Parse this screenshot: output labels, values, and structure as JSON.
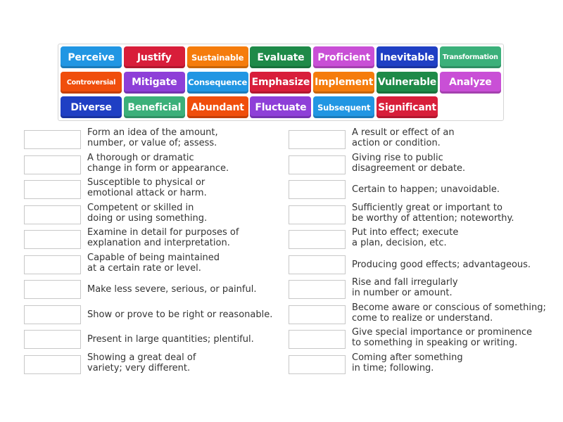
{
  "tiles": [
    {
      "label": "Perceive",
      "color": "#2196e3",
      "row": 0,
      "col": 0,
      "size": ""
    },
    {
      "label": "Justify",
      "color": "#d81e3a",
      "row": 0,
      "col": 1,
      "size": ""
    },
    {
      "label": "Sustainable",
      "color": "#f57c0c",
      "row": 0,
      "col": 2,
      "size": "sm"
    },
    {
      "label": "Evaluate",
      "color": "#1e8a48",
      "row": 0,
      "col": 3,
      "size": ""
    },
    {
      "label": "Proficient",
      "color": "#c94fd6",
      "row": 0,
      "col": 4,
      "size": ""
    },
    {
      "label": "Inevitable",
      "color": "#1f3fc4",
      "row": 0,
      "col": 5,
      "size": ""
    },
    {
      "label": "Transformation",
      "color": "#3bb07a",
      "row": 0,
      "col": 6,
      "size": "xs"
    },
    {
      "label": "Controversial",
      "color": "#f04e0c",
      "row": 1,
      "col": 0,
      "size": "xs"
    },
    {
      "label": "Mitigate",
      "color": "#8e3fd8",
      "row": 1,
      "col": 1,
      "size": ""
    },
    {
      "label": "Consequence",
      "color": "#2196e3",
      "row": 1,
      "col": 2,
      "size": "sm"
    },
    {
      "label": "Emphasize",
      "color": "#d81e3a",
      "row": 1,
      "col": 3,
      "size": ""
    },
    {
      "label": "Implement",
      "color": "#f57c0c",
      "row": 1,
      "col": 4,
      "size": ""
    },
    {
      "label": "Vulnerable",
      "color": "#1e8a48",
      "row": 1,
      "col": 5,
      "size": ""
    },
    {
      "label": "Analyze",
      "color": "#c94fd6",
      "row": 1,
      "col": 6,
      "size": ""
    },
    {
      "label": "Diverse",
      "color": "#1f3fc4",
      "row": 2,
      "col": 0,
      "size": ""
    },
    {
      "label": "Beneficial",
      "color": "#3bb07a",
      "row": 2,
      "col": 1,
      "size": ""
    },
    {
      "label": "Abundant",
      "color": "#f04e0c",
      "row": 2,
      "col": 2,
      "size": ""
    },
    {
      "label": "Fluctuate",
      "color": "#8e3fd8",
      "row": 2,
      "col": 3,
      "size": ""
    },
    {
      "label": "Subsequent",
      "color": "#2196e3",
      "row": 2,
      "col": 4,
      "size": "sm"
    },
    {
      "label": "Significant",
      "color": "#d81e3a",
      "row": 2,
      "col": 5,
      "size": ""
    }
  ],
  "definitions_left": [
    {
      "line1": "Form an idea of the amount,",
      "line2": "number, or value of; assess."
    },
    {
      "line1": "A thorough or dramatic",
      "line2": "change in form or appearance."
    },
    {
      "line1": "Susceptible to physical or",
      "line2": "emotional attack or harm."
    },
    {
      "line1": "Competent or skilled in",
      "line2": "doing or using something."
    },
    {
      "line1": "Examine in detail for purposes of",
      "line2": "explanation and interpretation."
    },
    {
      "line1": "Capable of being maintained",
      "line2": "at a certain rate or level."
    },
    {
      "line1": "Make less severe, serious, or painful.",
      "line2": ""
    },
    {
      "line1": "Show or prove to be right or reasonable.",
      "line2": ""
    },
    {
      "line1": "Present in large quantities; plentiful.",
      "line2": ""
    },
    {
      "line1": "Showing a great deal of",
      "line2": "variety; very different."
    }
  ],
  "definitions_right": [
    {
      "line1": "A result or effect of an",
      "line2": "action or condition."
    },
    {
      "line1": "Giving rise to public",
      "line2": "disagreement or debate."
    },
    {
      "line1": "Certain to happen; unavoidable.",
      "line2": ""
    },
    {
      "line1": "Sufficiently great or important to",
      "line2": "be worthy of attention; noteworthy."
    },
    {
      "line1": "Put into effect; execute",
      "line2": "a plan, decision, etc."
    },
    {
      "line1": "Producing good effects; advantageous.",
      "line2": ""
    },
    {
      "line1": "Rise and fall irregularly",
      "line2": "in number or amount."
    },
    {
      "line1": "Become aware or conscious of something;",
      "line2": "come to realize or understand."
    },
    {
      "line1": "Give special importance or prominence",
      "line2": "to something in speaking or writing."
    },
    {
      "line1": "Coming after something",
      "line2": "in time; following."
    }
  ]
}
